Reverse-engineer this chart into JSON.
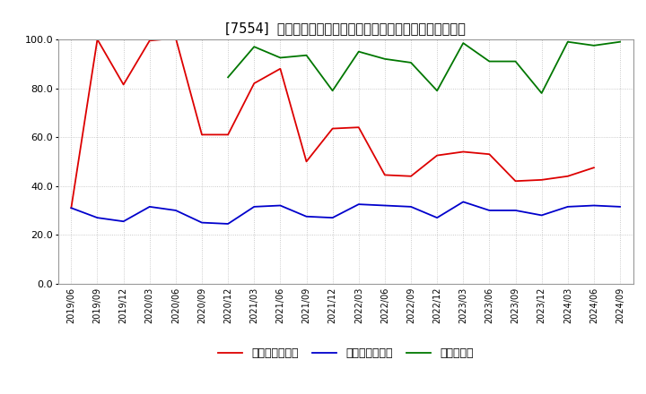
{
  "title": "[7554]  売上債権回転率、買入債務回転率、在庫回転率の推移",
  "x_labels": [
    "2019/06",
    "2019/09",
    "2019/12",
    "2020/03",
    "2020/06",
    "2020/09",
    "2020/12",
    "2021/03",
    "2021/06",
    "2021/09",
    "2021/12",
    "2022/03",
    "2022/06",
    "2022/09",
    "2022/12",
    "2023/03",
    "2023/06",
    "2023/09",
    "2023/12",
    "2024/03",
    "2024/06",
    "2024/09"
  ],
  "red_line": [
    31.0,
    100.0,
    81.5,
    99.5,
    100.5,
    61.0,
    61.0,
    82.0,
    88.0,
    50.0,
    63.5,
    64.0,
    44.5,
    44.0,
    52.5,
    54.0,
    53.0,
    42.0,
    42.5,
    44.0,
    47.5,
    null
  ],
  "blue_line": [
    31.0,
    27.0,
    25.5,
    31.5,
    30.0,
    25.0,
    24.5,
    31.5,
    32.0,
    27.5,
    27.0,
    32.5,
    32.0,
    31.5,
    27.0,
    33.5,
    30.0,
    30.0,
    28.0,
    31.5,
    32.0,
    31.5
  ],
  "green_line": [
    null,
    null,
    null,
    null,
    null,
    null,
    84.5,
    97.0,
    92.5,
    93.5,
    79.0,
    95.0,
    92.0,
    90.5,
    79.0,
    98.5,
    91.0,
    91.0,
    78.0,
    99.0,
    97.5,
    99.0
  ],
  "ylim": [
    0,
    100
  ],
  "yticks": [
    0.0,
    20.0,
    40.0,
    60.0,
    80.0,
    100.0
  ],
  "legend_labels": [
    "売上債権回転率",
    "買入債務回転率",
    "在庫回転率"
  ],
  "line_colors": [
    "#dd0000",
    "#0000cc",
    "#007700"
  ],
  "background_color": "#ffffff",
  "grid_color": "#bbbbbb",
  "title_fontsize": 10.5
}
